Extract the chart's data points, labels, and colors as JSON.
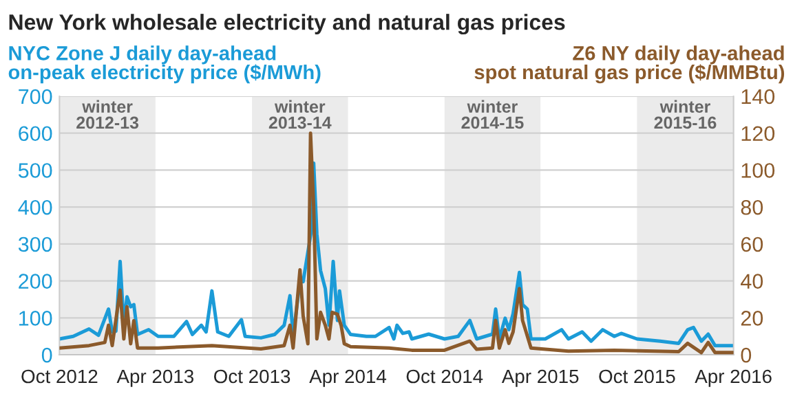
{
  "chart_data": {
    "type": "line",
    "title": "New York wholesale electricity and natural gas prices",
    "ylabel": "NYC Zone J daily day-ahead\non-peak electricity price ($/MWh)",
    "y2label": "Z6 NY daily day-ahead\nspot natural gas price ($/MMBtu)",
    "xlim": [
      "2012-10-01",
      "2016-04-01"
    ],
    "xticks": [
      {
        "value": "2012-10-01",
        "label": "Oct 2012"
      },
      {
        "value": "2013-04-01",
        "label": "Apr 2013"
      },
      {
        "value": "2013-10-01",
        "label": "Oct 2013"
      },
      {
        "value": "2014-04-01",
        "label": "Apr 2014"
      },
      {
        "value": "2014-10-01",
        "label": "Oct 2014"
      },
      {
        "value": "2015-04-01",
        "label": "Apr 2015"
      },
      {
        "value": "2015-10-01",
        "label": "Oct 2015"
      },
      {
        "value": "2016-04-01",
        "label": "Apr 2016"
      }
    ],
    "ylim": [
      0,
      700
    ],
    "yticks": [
      0,
      100,
      200,
      300,
      400,
      500,
      600,
      700
    ],
    "y2lim": [
      0,
      140
    ],
    "y2ticks": [
      0,
      20,
      40,
      60,
      80,
      100,
      120,
      140
    ],
    "grid": "y",
    "legend": false,
    "bands": [
      {
        "axis": "x",
        "from": "2012-10-01",
        "to": "2013-04-01",
        "label": "winter\n2012-13",
        "color": "#ebebeb"
      },
      {
        "axis": "x",
        "from": "2013-10-01",
        "to": "2014-04-01",
        "label": "winter\n2013-14",
        "color": "#ebebeb"
      },
      {
        "axis": "x",
        "from": "2014-10-01",
        "to": "2015-04-01",
        "label": "winter\n2014-15",
        "color": "#ebebeb"
      },
      {
        "axis": "x",
        "from": "2015-10-01",
        "to": "2016-04-01",
        "label": "winter\n2015-16",
        "color": "#ebebeb"
      }
    ],
    "series": [
      {
        "color": "#1b9bd7",
        "x": [
          "2012-10-01",
          "2012-10-27",
          "2012-11-26",
          "2012-12-14",
          "2013-01-02",
          "2013-01-09",
          "2013-01-16",
          "2013-01-24",
          "2013-01-31",
          "2013-02-06",
          "2013-02-13",
          "2013-02-19",
          "2013-02-26",
          "2013-03-19",
          "2013-04-06",
          "2013-05-06",
          "2013-05-30",
          "2013-06-10",
          "2013-06-27",
          "2013-07-06",
          "2013-07-17",
          "2013-07-28",
          "2013-08-18",
          "2013-09-11",
          "2013-09-18",
          "2013-10-18",
          "2013-11-13",
          "2013-12-01",
          "2013-12-12",
          "2013-12-18",
          "2013-12-31",
          "2014-01-06",
          "2014-01-15",
          "2014-01-22",
          "2014-01-26",
          "2014-02-01",
          "2014-02-08",
          "2014-02-17",
          "2014-02-24",
          "2014-03-04",
          "2014-03-12",
          "2014-03-16",
          "2014-03-25",
          "2014-04-06",
          "2014-05-06",
          "2014-05-23",
          "2014-06-18",
          "2014-06-27",
          "2014-07-03",
          "2014-07-14",
          "2014-07-26",
          "2014-07-31",
          "2014-09-01",
          "2014-10-01",
          "2014-10-27",
          "2014-11-18",
          "2014-12-01",
          "2014-12-31",
          "2015-01-06",
          "2015-01-13",
          "2015-01-24",
          "2015-01-31",
          "2015-02-08",
          "2015-02-20",
          "2015-02-26",
          "2015-03-07",
          "2015-03-14",
          "2015-04-10",
          "2015-05-11",
          "2015-05-24",
          "2015-06-19",
          "2015-07-06",
          "2015-07-28",
          "2015-08-19",
          "2015-09-01",
          "2015-10-01",
          "2015-11-14",
          "2015-12-19",
          "2016-01-05",
          "2016-01-16",
          "2016-01-31",
          "2016-02-13",
          "2016-02-26",
          "2016-04-01"
        ],
        "values": [
          43,
          50,
          70,
          53,
          124,
          62,
          64,
          253,
          80,
          157,
          130,
          136,
          55,
          68,
          50,
          50,
          90,
          55,
          80,
          62,
          173,
          62,
          50,
          95,
          50,
          46,
          55,
          80,
          160,
          50,
          200,
          198,
          null,
          340,
          519,
          327,
          228,
          179,
          80,
          253,
          93,
          173,
          80,
          55,
          50,
          50,
          74,
          43,
          80,
          58,
          62,
          43,
          56,
          43,
          50,
          93,
          43,
          56,
          124,
          43,
          99,
          68,
          111,
          223,
          136,
          124,
          43,
          43,
          68,
          43,
          62,
          37,
          68,
          50,
          58,
          43,
          37,
          31,
          68,
          74,
          37,
          56,
          25,
          25
        ]
      },
      {
        "color": "#8b5a2b",
        "axis": "y2",
        "x": [
          "2012-10-01",
          "2012-11-26",
          "2012-12-26",
          "2013-01-02",
          "2013-01-09",
          "2013-01-24",
          "2013-01-31",
          "2013-02-06",
          "2013-02-13",
          "2013-02-19",
          "2013-02-26",
          "2013-04-06",
          "2013-07-17",
          "2013-10-18",
          "2013-12-01",
          "2013-12-12",
          "2013-12-18",
          "2013-12-31",
          "2014-01-06",
          "2014-01-15",
          "2014-01-20",
          "2014-01-26",
          "2014-02-01",
          "2014-02-08",
          "2014-02-17",
          "2014-02-24",
          "2014-03-02",
          "2014-03-12",
          "2014-03-19",
          "2014-03-25",
          "2014-04-06",
          "2014-06-18",
          "2014-07-31",
          "2014-10-01",
          "2014-11-18",
          "2014-12-01",
          "2014-12-31",
          "2015-01-06",
          "2015-01-13",
          "2015-01-24",
          "2015-01-31",
          "2015-02-08",
          "2015-02-20",
          "2015-02-26",
          "2015-03-14",
          "2015-05-24",
          "2015-08-19",
          "2015-12-19",
          "2016-01-05",
          "2016-01-31",
          "2016-02-13",
          "2016-02-26",
          "2016-04-01"
        ],
        "values": [
          3.7,
          5,
          6.7,
          16,
          5,
          35,
          8.6,
          26,
          6,
          18.5,
          3.7,
          3.7,
          5,
          3.2,
          5,
          16,
          3.7,
          46,
          21,
          6,
          120,
          80,
          8.6,
          23,
          16,
          8.6,
          23,
          22,
          16,
          6,
          4.4,
          3.7,
          2.5,
          2.5,
          7.4,
          3,
          3.7,
          18.6,
          3.7,
          13.6,
          6.2,
          12.4,
          35.9,
          18.6,
          3.7,
          2,
          2.5,
          1.7,
          6.2,
          1.2,
          6.7,
          1.2,
          1.2
        ]
      }
    ]
  }
}
